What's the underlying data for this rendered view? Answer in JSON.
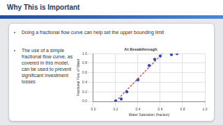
{
  "slide": {
    "title": "Why This is Important",
    "bullets": [
      "Doing a fractional flow curve can help set the upper bounding limit",
      "The use of a simple fractional flow curve, as covered in this model, can be used to prevent significant investment losses"
    ]
  },
  "chart_data": {
    "type": "scatter",
    "title": "At Breakthrough",
    "x_label": "Water Saturation (fraction)",
    "y_label": "Fractional Flow of Water",
    "series": [
      {
        "color": "#2f4fbf",
        "marker": "circle",
        "x": [
          0.2,
          0.25,
          0.3,
          0.4,
          0.5,
          0.55,
          0.6,
          0.7,
          0.75
        ],
        "values": [
          0.01,
          0.05,
          0.2,
          0.45,
          0.75,
          0.88,
          0.95,
          0.98,
          1.0
        ]
      },
      {
        "type": "line",
        "color": "#e03030",
        "line_style": "dashed",
        "marker": "none",
        "x": [
          0.2,
          0.62
        ],
        "values": [
          0,
          1
        ]
      }
    ],
    "xlim": [
      0,
      1
    ],
    "ylim": [
      0,
      1
    ],
    "xticks": [
      {
        "value": 0,
        "label": "0.0"
      },
      0.2,
      0.4,
      0.6,
      0.8,
      {
        "value": 1,
        "label": "1.0"
      }
    ],
    "yticks": [
      {
        "value": 0,
        "label": "0.0"
      },
      0.2,
      0.4,
      0.6,
      0.8,
      {
        "value": 1,
        "label": "1.0"
      }
    ],
    "grid": true
  }
}
